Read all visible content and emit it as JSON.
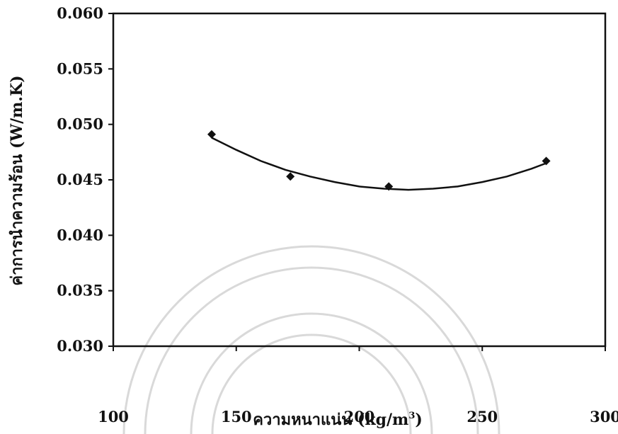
{
  "chart_data": {
    "type": "scatter",
    "title": "",
    "xlabel": "ความหนาแน่น (kg/m",
    "xlabel_superscript": "3",
    "xlabel_suffix": ")",
    "ylabel": "ค่าการนำความร้อน (W/m.K)",
    "xlim": [
      100,
      300
    ],
    "ylim": [
      0.03,
      0.06
    ],
    "x_ticks": [
      "100",
      "150",
      "200",
      "250",
      "300"
    ],
    "y_ticks": [
      "0.030",
      "0.035",
      "0.040",
      "0.045",
      "0.050",
      "0.055",
      "0.060"
    ],
    "series": [
      {
        "points": [
          {
            "x": 140,
            "y": 0.0491
          },
          {
            "x": 172,
            "y": 0.0453
          },
          {
            "x": 212,
            "y": 0.0444
          },
          {
            "x": 276,
            "y": 0.0467
          }
        ],
        "marker": "diamond",
        "color": "#111111"
      }
    ],
    "trendline": {
      "type": "polynomial-2",
      "x": [
        140,
        150,
        160,
        170,
        180,
        190,
        200,
        210,
        220,
        230,
        240,
        250,
        260,
        270,
        276
      ],
      "y": [
        0.0488,
        0.0477,
        0.0467,
        0.0459,
        0.0453,
        0.0448,
        0.0444,
        0.0442,
        0.0441,
        0.0442,
        0.0444,
        0.0448,
        0.0453,
        0.046,
        0.0465
      ]
    },
    "grid": false,
    "legend": "none"
  }
}
